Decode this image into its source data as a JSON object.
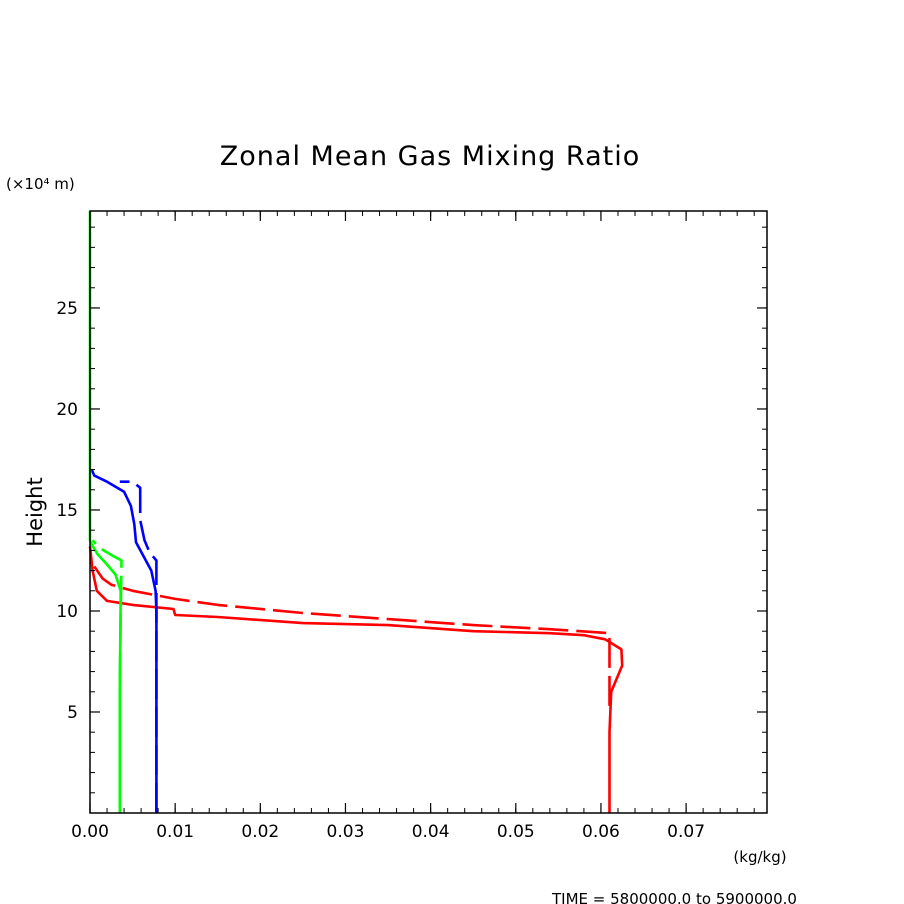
{
  "chart_data": {
    "type": "line",
    "title": "Zonal Mean Gas Mixing Ratio",
    "ylabel": "Height",
    "y_unit": "(×10⁴ m)",
    "x_unit": "(kg/kg)",
    "footer": "TIME = 5800000.0 to 5900000.0",
    "xlim": [
      0.0,
      0.0795
    ],
    "ylim": [
      0,
      29.8
    ],
    "x_ticks": [
      0.0,
      0.01,
      0.02,
      0.03,
      0.04,
      0.05,
      0.06,
      0.07
    ],
    "x_tick_labels": [
      "0.00",
      "0.01",
      "0.02",
      "0.03",
      "0.04",
      "0.05",
      "0.06",
      "0.07"
    ],
    "y_ticks": [
      5,
      10,
      15,
      20,
      25
    ],
    "y_tick_labels": [
      "5",
      "10",
      "15",
      "20",
      "25"
    ],
    "grid": false,
    "series": [
      {
        "color": "#ff0000",
        "style": "solid",
        "points": [
          [
            0.061,
            0
          ],
          [
            0.061,
            4
          ],
          [
            0.0612,
            6
          ],
          [
            0.0625,
            7.3
          ],
          [
            0.0624,
            8.1
          ],
          [
            0.0605,
            8.6
          ],
          [
            0.058,
            8.8
          ],
          [
            0.054,
            8.9
          ],
          [
            0.045,
            9.0
          ],
          [
            0.035,
            9.3
          ],
          [
            0.025,
            9.4
          ],
          [
            0.015,
            9.7
          ],
          [
            0.01,
            9.8
          ],
          [
            0.0098,
            10.1
          ],
          [
            0.005,
            10.3
          ],
          [
            0.002,
            10.5
          ],
          [
            0.0008,
            11
          ],
          [
            0.0003,
            12
          ],
          [
            0.0001,
            12.8
          ],
          [
            0,
            13.2
          ]
        ]
      },
      {
        "color": "#ff0000",
        "style": "dashed",
        "points": [
          [
            0.061,
            5.3
          ],
          [
            0.061,
            8.9
          ],
          [
            0.054,
            9.1
          ],
          [
            0.045,
            9.3
          ],
          [
            0.035,
            9.6
          ],
          [
            0.025,
            9.9
          ],
          [
            0.015,
            10.3
          ],
          [
            0.01,
            10.6
          ],
          [
            0.005,
            11
          ],
          [
            0.0025,
            11.3
          ],
          [
            0.0015,
            11.6
          ],
          [
            0.0005,
            12.2
          ]
        ]
      },
      {
        "color": "#0000ff",
        "style": "solid",
        "points": [
          [
            0.0078,
            0
          ],
          [
            0.0078,
            6
          ],
          [
            0.0078,
            10
          ],
          [
            0.0077,
            11
          ],
          [
            0.0072,
            12
          ],
          [
            0.0054,
            13.4
          ],
          [
            0.0052,
            14.3
          ],
          [
            0.0048,
            15.2
          ],
          [
            0.004,
            15.9
          ],
          [
            0.002,
            16.4
          ],
          [
            0.0005,
            16.7
          ],
          [
            0.0002,
            17.0
          ]
        ]
      },
      {
        "color": "#0000ff",
        "style": "dashed",
        "points": [
          [
            0.0078,
            0
          ],
          [
            0.0078,
            12.5
          ],
          [
            0.007,
            12.9
          ],
          [
            0.0064,
            13.5
          ],
          [
            0.0059,
            14.5
          ],
          [
            0.0059,
            16.1
          ],
          [
            0.005,
            16.4
          ],
          [
            0.0035,
            16.4
          ]
        ]
      },
      {
        "color": "#00ff00",
        "style": "solid",
        "points": [
          [
            0.0035,
            0
          ],
          [
            0.0035,
            6
          ],
          [
            0.0036,
            11
          ],
          [
            0.003,
            11.8
          ],
          [
            0.002,
            12.3
          ],
          [
            0.0009,
            12.8
          ],
          [
            0.0002,
            13.3
          ],
          [
            0,
            13.5
          ],
          [
            0,
            29.8
          ]
        ]
      },
      {
        "color": "#00ff00",
        "style": "dashed",
        "points": [
          [
            0.0035,
            6.5
          ],
          [
            0.0037,
            12.5
          ],
          [
            0.0028,
            12.7
          ],
          [
            0.0012,
            13.1
          ],
          [
            0.0003,
            13.5
          ]
        ]
      }
    ]
  }
}
